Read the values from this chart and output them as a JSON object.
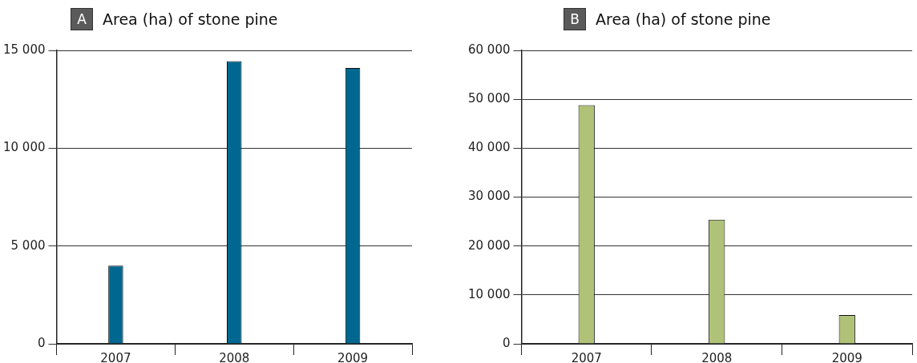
{
  "chart_data": [
    {
      "type": "bar",
      "title": "Area (ha) of stone pine",
      "annotations": [
        "A"
      ],
      "categories": [
        "2007",
        "2008",
        "2009"
      ],
      "series": [
        {
          "color": "#006890",
          "values": [
            4000,
            14450,
            14100
          ]
        }
      ],
      "ylim": [
        0,
        15000
      ],
      "yticks": [
        {
          "value": 0,
          "label": "0"
        },
        {
          "value": 5000,
          "label": "5 000"
        },
        {
          "value": 10000,
          "label": "10 000"
        },
        {
          "value": 15000,
          "label": "15 000"
        }
      ],
      "grid": "y",
      "legend": false
    },
    {
      "type": "bar",
      "title": "Area (ha) of stone pine",
      "annotations": [
        "B"
      ],
      "categories": [
        "2007",
        "2008",
        "2009"
      ],
      "series": [
        {
          "color": "#b0c277",
          "values": [
            48800,
            25400,
            5900
          ]
        }
      ],
      "ylim": [
        0,
        60000
      ],
      "yticks": [
        {
          "value": 0,
          "label": "0"
        },
        {
          "value": 10000,
          "label": "10 000"
        },
        {
          "value": 20000,
          "label": "20 000"
        },
        {
          "value": 30000,
          "label": "30 000"
        },
        {
          "value": 40000,
          "label": "40 000"
        },
        {
          "value": 50000,
          "label": "50 000"
        },
        {
          "value": 60000,
          "label": "60 000"
        }
      ],
      "grid": "y",
      "legend": false
    }
  ]
}
